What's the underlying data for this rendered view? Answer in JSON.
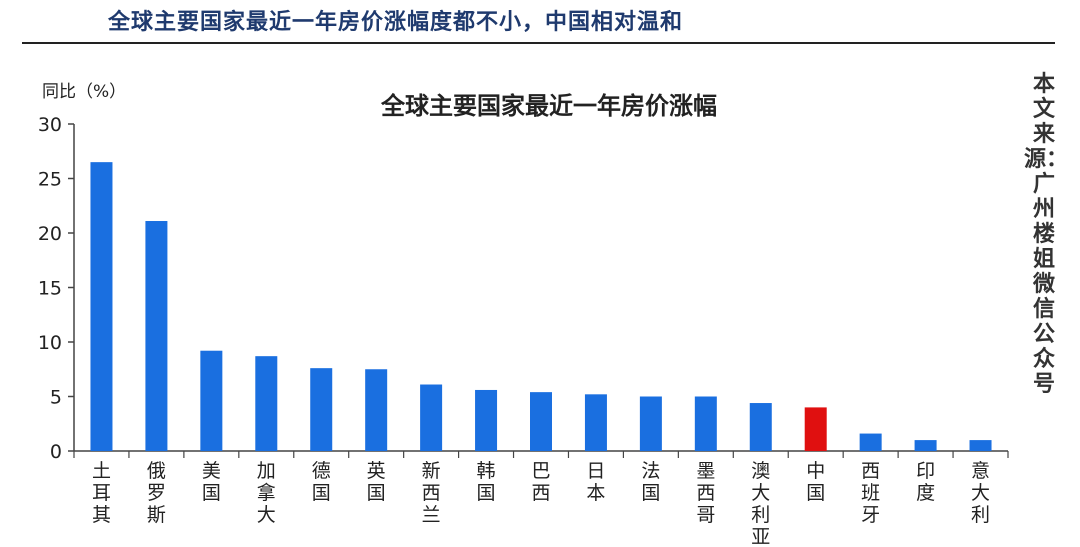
{
  "headline": "全球主要国家最近一年房价涨幅度都不小，中国相对温和",
  "source_note": "本文来源：广州楼姐 微信公众号",
  "chart_data": {
    "type": "bar",
    "title": "全球主要国家最近一年房价涨幅",
    "ylabel": "同比（%）",
    "xlabel": "",
    "ylim": [
      0,
      30
    ],
    "yticks": [
      0,
      5,
      10,
      15,
      20,
      25,
      30
    ],
    "grid": false,
    "categories": [
      "土耳其",
      "俄罗斯",
      "美国",
      "加拿大",
      "德国",
      "英国",
      "新西兰",
      "韩国",
      "巴西",
      "日本",
      "法国",
      "墨西哥",
      "澳大利亚",
      "中国",
      "西班牙",
      "印度",
      "意大利"
    ],
    "values": [
      26.5,
      21.1,
      9.2,
      8.7,
      7.6,
      7.5,
      6.1,
      5.6,
      5.4,
      5.2,
      5.0,
      5.0,
      4.4,
      4.0,
      1.6,
      1.0,
      1.0
    ],
    "bar_color": "#1a6fe0",
    "highlight_category": "中国",
    "highlight_color": "#e01010"
  }
}
